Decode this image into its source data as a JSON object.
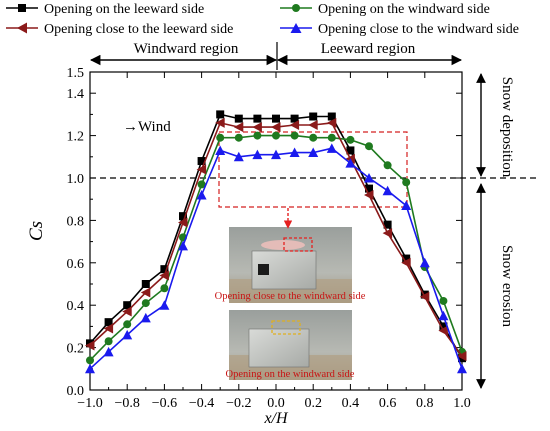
{
  "chart_data": {
    "type": "line",
    "xlabel": "x/H",
    "ylabel": "Cs",
    "xlim": [
      -1.0,
      1.0
    ],
    "ylim": [
      0.0,
      1.5
    ],
    "x_ticks": [
      "−1.0",
      "−0.8",
      "−0.6",
      "−0.4",
      "−0.2",
      "0.0",
      "0.2",
      "0.4",
      "0.6",
      "0.8",
      "1.0"
    ],
    "y_ticks": [
      "0.0",
      "0.2",
      "0.4",
      "0.6",
      "0.8",
      "1.0",
      "1.2",
      "1.4"
    ],
    "y_tick_extra": "1.5",
    "reference_line": 1.0,
    "legend_position": "top",
    "regions": {
      "windward": "Windward region",
      "leeward": "Leeward region"
    },
    "side_labels": {
      "upper": "Snow deposition",
      "lower": "Snow erosion"
    },
    "wind_label": "→Wind",
    "inset_captions": [
      "Opening close to the windward side",
      "Opening on the windward side"
    ],
    "series": [
      {
        "name": "Opening on the leeward side",
        "color": "#000000",
        "marker": "square",
        "x": [
          -1.0,
          -0.9,
          -0.8,
          -0.7,
          -0.6,
          -0.5,
          -0.4,
          -0.3,
          -0.2,
          -0.1,
          0.0,
          0.1,
          0.2,
          0.3,
          0.4,
          0.5,
          0.6,
          0.7,
          0.8,
          0.9,
          1.0
        ],
        "values": [
          0.22,
          0.32,
          0.4,
          0.5,
          0.57,
          0.82,
          1.08,
          1.3,
          1.28,
          1.28,
          1.28,
          1.28,
          1.29,
          1.29,
          1.13,
          0.95,
          0.78,
          0.62,
          0.45,
          0.3,
          0.15
        ]
      },
      {
        "name": "Opening on the windward side",
        "color": "#1f7a1f",
        "marker": "circle",
        "x": [
          -1.0,
          -0.9,
          -0.8,
          -0.7,
          -0.6,
          -0.5,
          -0.4,
          -0.3,
          -0.2,
          -0.1,
          0.0,
          0.1,
          0.2,
          0.3,
          0.4,
          0.5,
          0.6,
          0.7,
          0.8,
          0.9,
          1.0
        ],
        "values": [
          0.14,
          0.23,
          0.31,
          0.41,
          0.48,
          0.72,
          0.97,
          1.19,
          1.19,
          1.2,
          1.2,
          1.2,
          1.19,
          1.19,
          1.18,
          1.15,
          1.06,
          0.98,
          0.58,
          0.42,
          0.18
        ]
      },
      {
        "name": "Opening close to the leeward side",
        "color": "#8b1a1a",
        "marker": "triangle-left",
        "x": [
          -1.0,
          -0.9,
          -0.8,
          -0.7,
          -0.6,
          -0.5,
          -0.4,
          -0.3,
          -0.2,
          -0.1,
          0.0,
          0.1,
          0.2,
          0.3,
          0.4,
          0.5,
          0.6,
          0.7,
          0.8,
          0.9,
          1.0
        ],
        "values": [
          0.21,
          0.29,
          0.37,
          0.46,
          0.54,
          0.79,
          1.04,
          1.26,
          1.24,
          1.24,
          1.24,
          1.25,
          1.25,
          1.26,
          1.09,
          0.92,
          0.74,
          0.6,
          0.44,
          0.28,
          0.16
        ]
      },
      {
        "name": "Opening close to the windward side",
        "color": "#1a1aee",
        "marker": "triangle-up",
        "x": [
          -1.0,
          -0.9,
          -0.8,
          -0.7,
          -0.6,
          -0.5,
          -0.4,
          -0.3,
          -0.2,
          -0.1,
          0.0,
          0.1,
          0.2,
          0.3,
          0.4,
          0.5,
          0.6,
          0.7,
          0.8,
          0.9,
          1.0
        ],
        "values": [
          0.1,
          0.18,
          0.26,
          0.34,
          0.4,
          0.68,
          0.92,
          1.13,
          1.1,
          1.11,
          1.11,
          1.12,
          1.12,
          1.14,
          1.07,
          1.0,
          0.94,
          0.87,
          0.6,
          0.35,
          0.1
        ]
      }
    ]
  }
}
